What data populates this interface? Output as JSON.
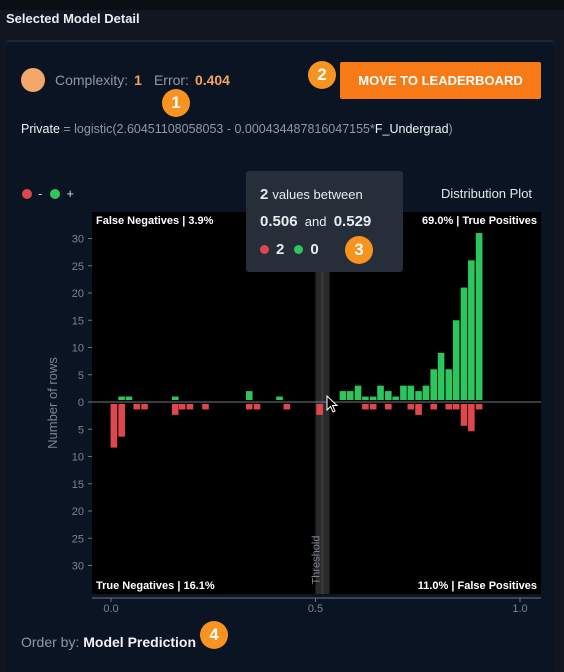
{
  "section_title": "Selected Model Detail",
  "model": {
    "complexity_label": "Complexity:",
    "complexity_value": "1",
    "error_label": "Error:",
    "error_value": "0.404"
  },
  "leaderboard_button": "MOVE TO LEADERBOARD",
  "badges": [
    "1",
    "2",
    "3",
    "4"
  ],
  "formula": {
    "target": "Private",
    "equals": " = logistic(2.60451108058053 - 0.000434487816047155*",
    "feature": "F_Undergrad",
    "close": ")"
  },
  "legend": {
    "minus": "-",
    "plus": "+",
    "minus_color": "#e0474c",
    "plus_color": "#2dc55e"
  },
  "distribution_title": "Distribution Plot",
  "tooltip": {
    "count": "2",
    "between_text": "values between",
    "low": "0.506",
    "and_text": "and",
    "high": "0.529",
    "neg_count": "2",
    "pos_count": "0"
  },
  "order_by": {
    "label": "Order by:",
    "value": "Model Prediction"
  },
  "chart_data": {
    "type": "bar",
    "ylabel": "Number of rows",
    "threshold_label": "Threshold",
    "threshold": 0.517,
    "xlim": [
      0,
      1
    ],
    "ylim": [
      -32,
      32
    ],
    "x_ticks": [
      "0.0",
      "0.5",
      "1.0"
    ],
    "y_ticks": [
      "30",
      "25",
      "20",
      "15",
      "10",
      "5",
      "0",
      "5",
      "10",
      "15",
      "20",
      "25",
      "30"
    ],
    "quadrant_labels": {
      "top_left": "False Negatives | 3.9%",
      "top_right": "69.0% | True Positives",
      "bottom_left": "True Negatives | 16.1%",
      "bottom_right": "11.0% | False Positives"
    },
    "series": [
      {
        "name": "+",
        "x": [
          0.026,
          0.044,
          0.157,
          0.338,
          0.412,
          0.567,
          0.585,
          0.604,
          0.622,
          0.641,
          0.659,
          0.678,
          0.696,
          0.715,
          0.733,
          0.752,
          0.77,
          0.789,
          0.807,
          0.826,
          0.844,
          0.863,
          0.881,
          0.9
        ],
        "values": [
          1,
          1,
          1,
          2,
          1,
          2,
          2,
          3,
          1,
          1,
          3,
          2,
          1,
          3,
          3,
          2,
          3,
          6,
          9,
          6,
          15,
          21,
          26,
          31
        ]
      },
      {
        "name": "-",
        "x": [
          0.007,
          0.026,
          0.063,
          0.082,
          0.157,
          0.174,
          0.193,
          0.231,
          0.338,
          0.357,
          0.43,
          0.51,
          0.622,
          0.641,
          0.678,
          0.733,
          0.752,
          0.789,
          0.826,
          0.844,
          0.863,
          0.881,
          0.9
        ],
        "values": [
          -8,
          -6,
          -1,
          -1,
          -2,
          -1,
          -1,
          -1,
          -1,
          -1,
          -1,
          -2,
          -1,
          -1,
          -1,
          -1,
          -2,
          -1,
          -1,
          -1,
          -4,
          -5,
          -1
        ]
      }
    ]
  }
}
